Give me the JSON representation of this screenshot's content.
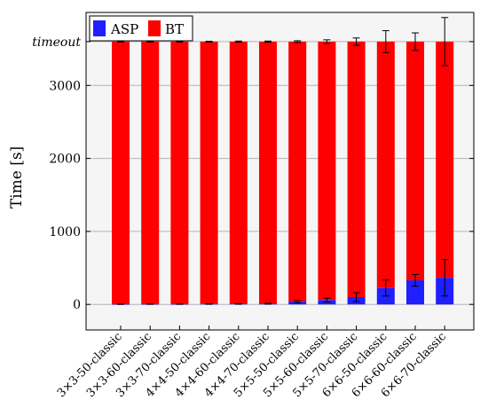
{
  "chart_data": {
    "type": "bar",
    "stacked": true,
    "ylabel": "Time [s]",
    "ylim": [
      -350,
      4000
    ],
    "yticks": [
      0,
      1000,
      2000,
      3000
    ],
    "timeout_tick": {
      "value": 3600,
      "label": "timeout"
    },
    "grid": true,
    "legend_position": "top-left",
    "categories": [
      "3×3-50-classic",
      "3×3-60-classic",
      "3×3-70-classic",
      "4×4-50-classic",
      "4×4-60-classic",
      "4×4-70-classic",
      "5×5-50-classic",
      "5×5-60-classic",
      "5×5-70-classic",
      "6×6-50-classic",
      "6×6-60-classic",
      "6×6-70-classic"
    ],
    "series": [
      {
        "name": "ASP",
        "color": "#1f1fff",
        "values": [
          2,
          3,
          3,
          5,
          7,
          10,
          38,
          60,
          100,
          225,
          330,
          365
        ],
        "error": [
          2,
          2,
          2,
          3,
          4,
          6,
          15,
          25,
          60,
          110,
          80,
          250
        ]
      },
      {
        "name": "BT",
        "color": "#ff0000",
        "values": [
          3598,
          3597,
          3597,
          3595,
          3593,
          3590,
          3562,
          3540,
          3500,
          3375,
          3270,
          3235
        ],
        "error": [
          5,
          5,
          5,
          5,
          8,
          8,
          12,
          25,
          50,
          150,
          120,
          330
        ]
      }
    ]
  }
}
